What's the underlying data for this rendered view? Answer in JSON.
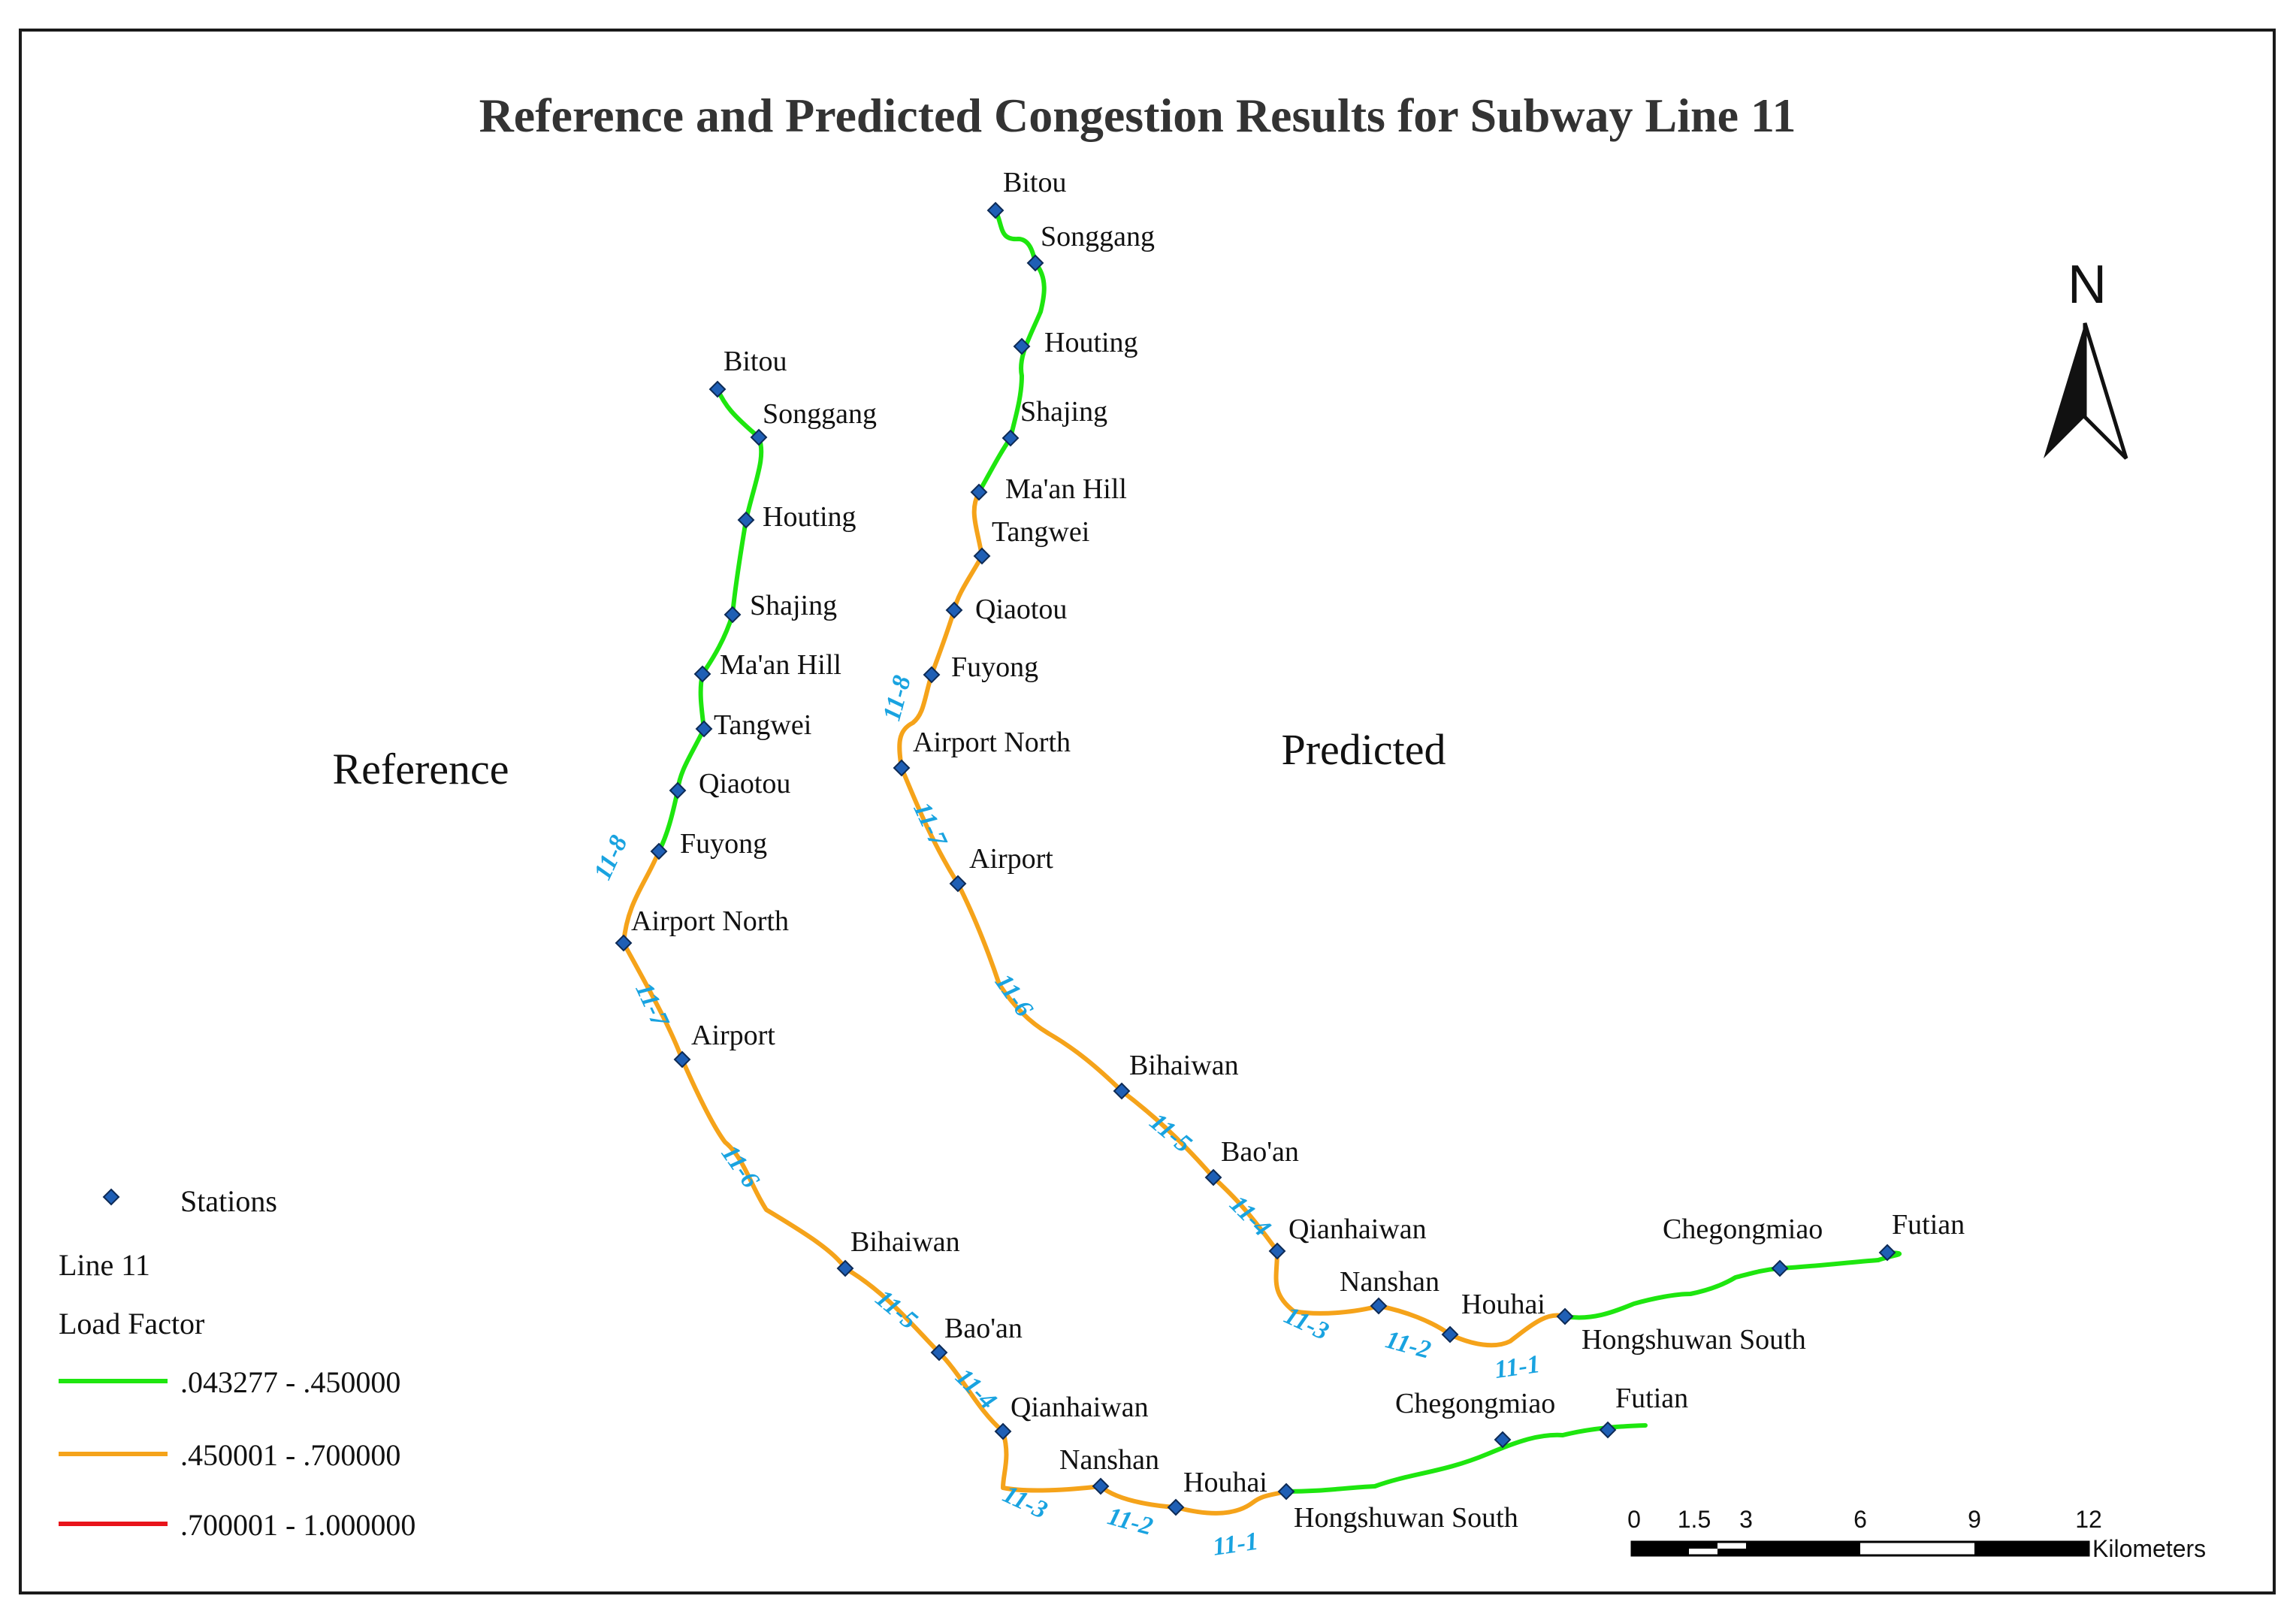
{
  "title": "Reference and Predicted Congestion Results for Subway Line 11",
  "panels": {
    "reference": "Reference",
    "predicted": "Predicted"
  },
  "stations": {
    "bitou": "Bitou",
    "songgang": "Songgang",
    "houting": "Houting",
    "shajing": "Shajing",
    "maan_hill": "Ma'an Hill",
    "tangwei": "Tangwei",
    "qiaotou": "Qiaotou",
    "fuyong": "Fuyong",
    "airport_north": "Airport North",
    "airport": "Airport",
    "bihaiwan": "Bihaiwan",
    "baoan": "Bao'an",
    "qianhaiwan": "Qianhaiwan",
    "nanshan": "Nanshan",
    "houhai": "Houhai",
    "hongshuwan_south": "Hongshuwan South",
    "chegongmiao": "Chegongmiao",
    "futian": "Futian"
  },
  "segments": {
    "s1": "11-1",
    "s2": "11-2",
    "s3": "11-3",
    "s4": "11-4",
    "s5": "11-5",
    "s6": "11-6",
    "s7": "11-7",
    "s8": "11-8"
  },
  "segment_load_classes": {
    "reference": {
      "Bitou-Fuyong": ".043277 - .450000",
      "Fuyong-Hongshuwan South": ".450001 - .700000",
      "Hongshuwan South-Futian": ".043277 - .450000"
    },
    "predicted": {
      "Bitou-Ma'an Hill": ".043277 - .450000",
      "Ma'an Hill-Hongshuwan South": ".450001 - .700000",
      "Hongshuwan South-Futian": ".043277 - .450000"
    }
  },
  "legend": {
    "stations_label": "Stations",
    "line_title": "Line 11",
    "field_title": "Load Factor",
    "classes": [
      {
        "label": ".043277 - .450000",
        "color": "#1ee60f"
      },
      {
        "label": ".450001 - .700000",
        "color": "#f5a31a"
      },
      {
        "label": ".700001 - 1.000000",
        "color": "#e8141b"
      }
    ]
  },
  "scale_bar": {
    "ticks": [
      "0",
      "1.5",
      "3",
      "6",
      "9",
      "12"
    ],
    "unit": "Kilometers"
  },
  "north_arrow": {
    "label": "N",
    "icon": "north-arrow-icon"
  },
  "colors": {
    "station": "#1f5fb5",
    "segment_label": "#19a3e0",
    "low": "#1ee60f",
    "mid": "#f5a31a",
    "high": "#e8141b"
  }
}
